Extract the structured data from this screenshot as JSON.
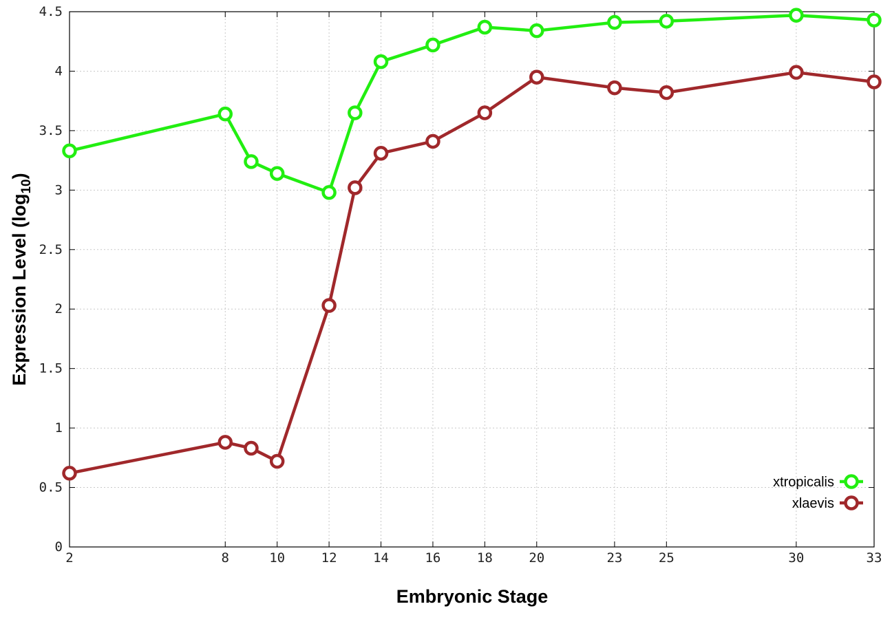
{
  "chart_data": {
    "type": "line",
    "xlabel": "Embryonic Stage",
    "ylabel_main": "Expression Level (log",
    "ylabel_sub": "10",
    "ylabel_close": ")",
    "xlim": [
      2,
      33
    ],
    "ylim": [
      0,
      4.5
    ],
    "x_ticks": [
      2,
      8,
      10,
      12,
      14,
      16,
      18,
      20,
      23,
      25,
      30,
      33
    ],
    "x_tick_labels": [
      "2",
      "8",
      "10",
      "12",
      "14",
      "16",
      "18",
      "20",
      "23",
      "25",
      "30",
      "33"
    ],
    "y_ticks": [
      0,
      0.5,
      1,
      1.5,
      2,
      2.5,
      3,
      3.5,
      4,
      4.5
    ],
    "y_tick_labels": [
      "0",
      "0.5",
      "1",
      "1.5",
      "2",
      "2.5",
      "3",
      "3.5",
      "4",
      "4.5"
    ],
    "grid": true,
    "legend_position": "bottom-right",
    "series": [
      {
        "name": "xtropicalis",
        "color": "#22ee11",
        "marker": "open-circle",
        "x": [
          2,
          8,
          9,
          10,
          12,
          13,
          14,
          16,
          18,
          20,
          23,
          25,
          30,
          33
        ],
        "y": [
          3.33,
          3.64,
          3.24,
          3.14,
          2.98,
          3.65,
          4.08,
          4.22,
          4.37,
          4.34,
          4.41,
          4.42,
          4.47,
          4.43
        ]
      },
      {
        "name": "xlaevis",
        "color": "#a0282b",
        "marker": "open-circle",
        "x": [
          2,
          8,
          9,
          10,
          12,
          13,
          14,
          16,
          18,
          20,
          23,
          25,
          30,
          33
        ],
        "y": [
          0.62,
          0.88,
          0.83,
          0.72,
          2.03,
          3.02,
          3.31,
          3.41,
          3.65,
          3.95,
          3.86,
          3.82,
          3.99,
          3.91
        ]
      }
    ]
  }
}
